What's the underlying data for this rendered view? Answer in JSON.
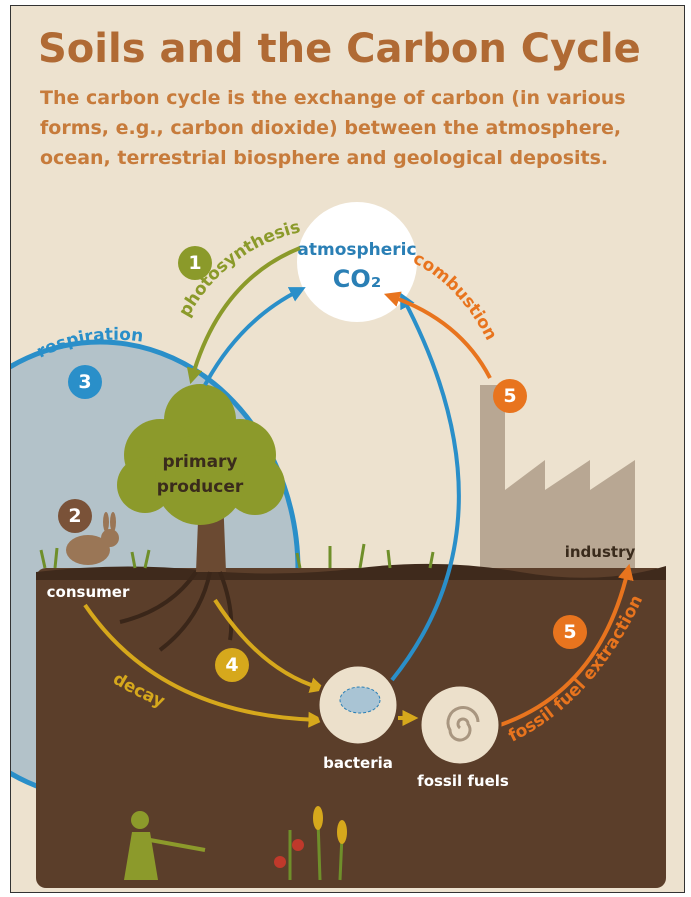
{
  "header": {
    "title": "Soils and the Carbon Cycle",
    "subtitle_lines": [
      "The carbon cycle is the exchange of carbon (in various",
      "forms, e.g., carbon dioxide) between the atmosphere,",
      "ocean, terrestrial biosphere and geological deposits."
    ]
  },
  "atmosphere": {
    "label": "atmospheric",
    "formula": "CO₂"
  },
  "processes": [
    {
      "number": "1",
      "label": "photosynthesis"
    },
    {
      "number": "3",
      "label": "respiration"
    },
    {
      "number": "5",
      "label": "combustion"
    },
    {
      "number": "2"
    },
    {
      "number": "4",
      "label": "decay"
    },
    {
      "number": "5",
      "label": "fossil fuel extraction"
    }
  ],
  "nodes": {
    "producer_lines": [
      "primary",
      "producer"
    ],
    "consumer": "consumer",
    "industry": "industry",
    "bacteria": "bacteria",
    "fossil": "fossil fuels"
  }
}
